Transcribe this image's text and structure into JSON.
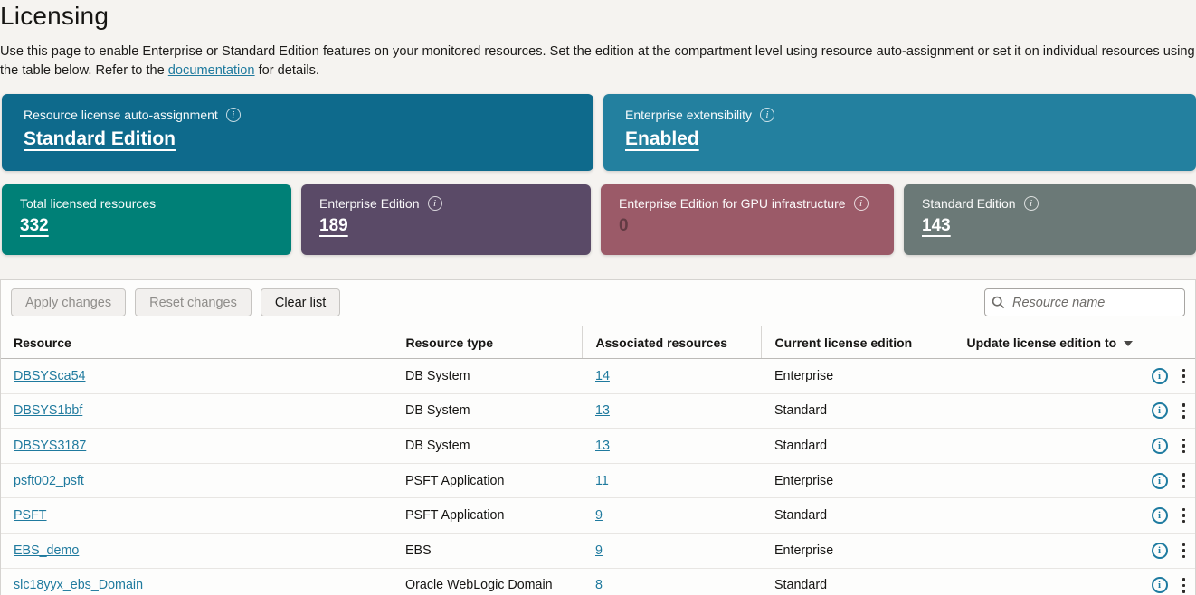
{
  "page": {
    "title": "Licensing",
    "description_part1": "Use this page to enable Enterprise or Standard Edition features on your monitored resources. Set the edition at the compartment level using resource auto-assignment or set it on individual resources using the table below. Refer to the ",
    "description_link": "documentation",
    "description_part2": " for details."
  },
  "colors": {
    "link_teal": "#1f7a9e",
    "card_auto_assignment": "#0e6a8c",
    "card_extensibility": "#23809f",
    "card_total": "#008077",
    "card_enterprise": "#5a4a67",
    "card_gpu": "#9b5a68",
    "card_standard": "#6b7977"
  },
  "summary_cards_large": [
    {
      "label": "Resource license auto-assignment",
      "value": "Standard Edition",
      "has_info": true,
      "bg": "#0e6a8c",
      "muted": false
    },
    {
      "label": "Enterprise extensibility",
      "value": "Enabled",
      "has_info": true,
      "bg": "#23809f",
      "muted": false
    }
  ],
  "summary_cards_small": [
    {
      "label": "Total licensed resources",
      "value": "332",
      "has_info": false,
      "bg": "#008077",
      "muted": false
    },
    {
      "label": "Enterprise Edition",
      "value": "189",
      "has_info": true,
      "bg": "#5a4a67",
      "muted": false
    },
    {
      "label": "Enterprise Edition for GPU infrastructure",
      "value": "0",
      "has_info": true,
      "bg": "#9b5a68",
      "muted": true
    },
    {
      "label": "Standard Edition",
      "value": "143",
      "has_info": true,
      "bg": "#6b7977",
      "muted": false
    }
  ],
  "toolbar": {
    "buttons": [
      {
        "label": "Apply changes",
        "disabled": true
      },
      {
        "label": "Reset changes",
        "disabled": true
      },
      {
        "label": "Clear list",
        "disabled": false
      }
    ],
    "search_placeholder": "Resource name"
  },
  "table": {
    "columns": [
      "Resource",
      "Resource type",
      "Associated resources",
      "Current license edition",
      "Update license edition to"
    ],
    "info_icon_glyph": "i",
    "rows": [
      {
        "resource": "DBSYSca54",
        "type": "DB System",
        "associated": "14",
        "edition": "Enterprise"
      },
      {
        "resource": "DBSYS1bbf",
        "type": "DB System",
        "associated": "13",
        "edition": "Standard"
      },
      {
        "resource": "DBSYS3187",
        "type": "DB System",
        "associated": "13",
        "edition": "Standard"
      },
      {
        "resource": "psft002_psft",
        "type": "PSFT Application",
        "associated": "11",
        "edition": "Enterprise"
      },
      {
        "resource": "PSFT",
        "type": "PSFT Application",
        "associated": "9",
        "edition": "Standard"
      },
      {
        "resource": "EBS_demo",
        "type": "EBS",
        "associated": "9",
        "edition": "Enterprise"
      },
      {
        "resource": "slc18yyx_ebs_Domain",
        "type": "Oracle WebLogic Domain",
        "associated": "8",
        "edition": "Standard"
      }
    ]
  }
}
